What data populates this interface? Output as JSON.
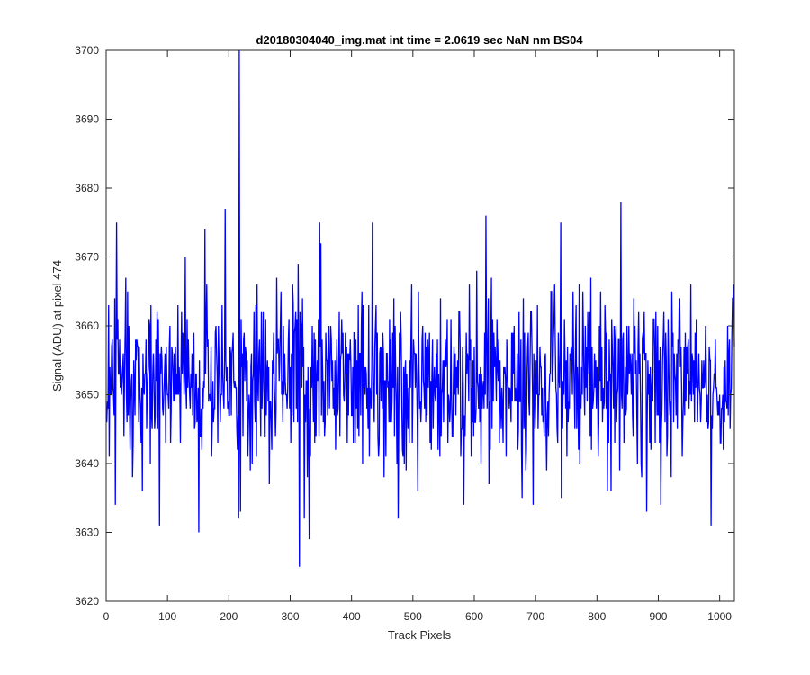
{
  "chart_data": {
    "type": "line",
    "title": "d20180304040_img.mat int time = 2.0619 sec  NaN nm BS04",
    "xlabel": "Track Pixels",
    "ylabel": "Signal (ADU) at pixel 474",
    "xlim": [
      0,
      1024
    ],
    "ylim": [
      3620,
      3700
    ],
    "xticks": [
      0,
      100,
      200,
      300,
      400,
      500,
      600,
      700,
      800,
      900,
      1000
    ],
    "yticks": [
      3620,
      3630,
      3640,
      3650,
      3660,
      3670,
      3680,
      3690,
      3700
    ],
    "grid": false,
    "legend": "none",
    "line_color": "#0000ff",
    "series": [
      {
        "points_count": 1024,
        "mean": 3652,
        "noise_std": 6.5,
        "range_min": 3625,
        "range_max": 3700,
        "notable_points": [
          {
            "x": 14,
            "y": 3634
          },
          {
            "x": 16,
            "y": 3675
          },
          {
            "x": 86,
            "y": 3631
          },
          {
            "x": 150,
            "y": 3630
          },
          {
            "x": 160,
            "y": 3674
          },
          {
            "x": 193,
            "y": 3677
          },
          {
            "x": 216,
            "y": 3700
          },
          {
            "x": 218,
            "y": 3633
          },
          {
            "x": 314,
            "y": 3625
          },
          {
            "x": 322,
            "y": 3632
          },
          {
            "x": 330,
            "y": 3629
          },
          {
            "x": 347,
            "y": 3675
          },
          {
            "x": 433,
            "y": 3675
          },
          {
            "x": 618,
            "y": 3676
          },
          {
            "x": 740,
            "y": 3675
          },
          {
            "x": 838,
            "y": 3678
          },
          {
            "x": 880,
            "y": 3633
          },
          {
            "x": 985,
            "y": 3631
          }
        ]
      }
    ]
  }
}
